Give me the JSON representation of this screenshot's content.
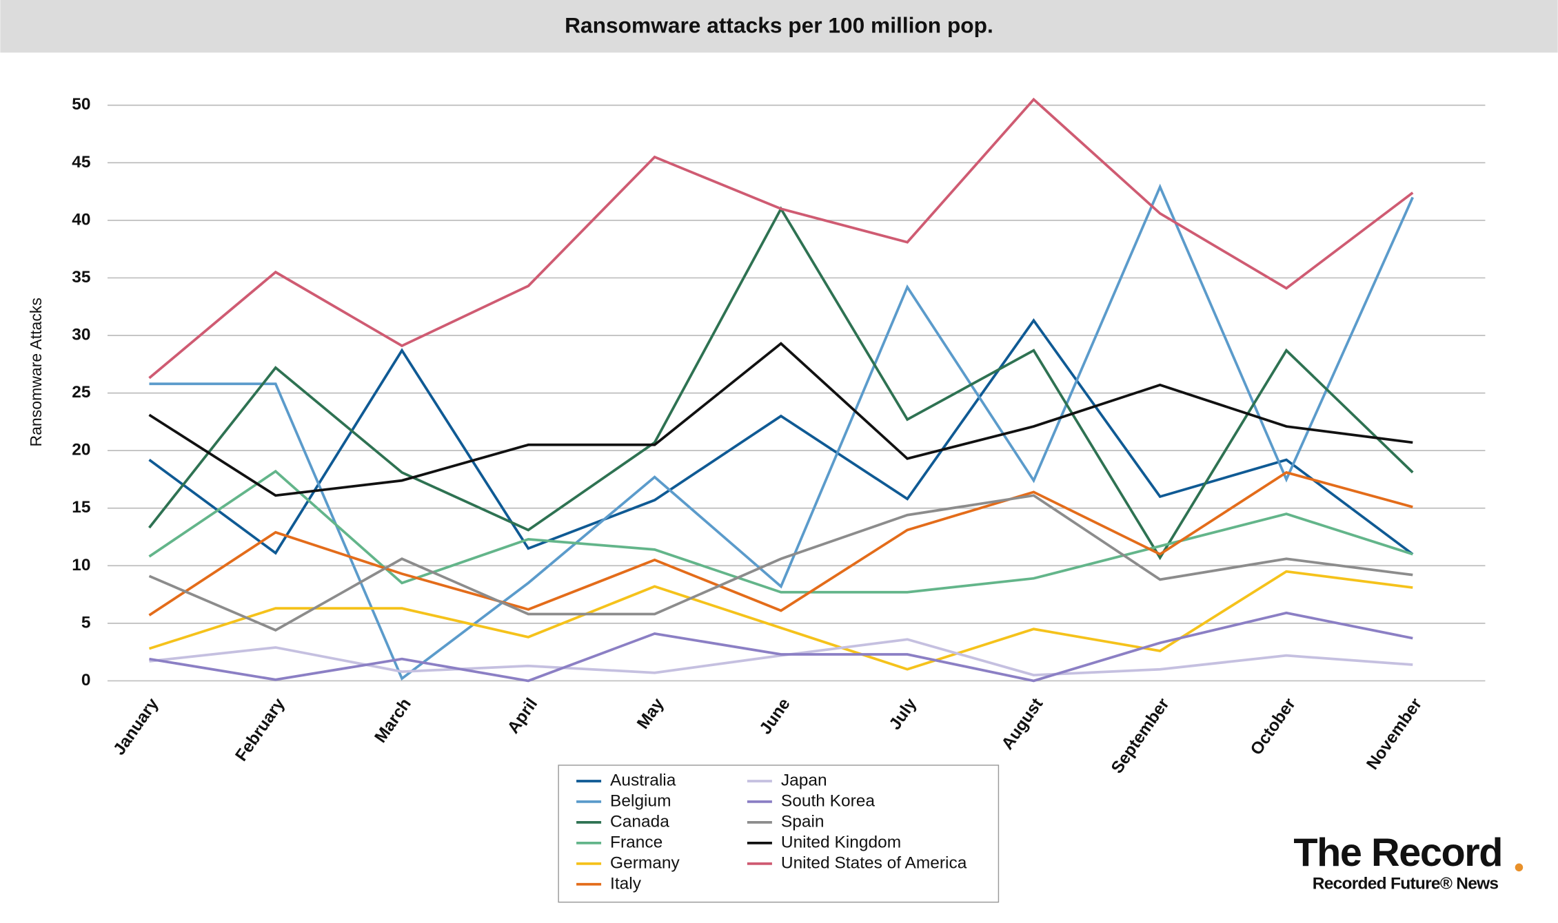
{
  "chart_data": {
    "type": "line",
    "title": "Ransomware attacks per 100 million pop.",
    "y_label": "Ransomware Attacks",
    "categories": [
      "January",
      "February",
      "March",
      "April",
      "May",
      "June",
      "July",
      "August",
      "September",
      "October",
      "November"
    ],
    "ylim": [
      0,
      50
    ],
    "yticks": [
      0,
      5,
      10,
      15,
      20,
      25,
      30,
      35,
      40,
      45,
      50
    ],
    "grid": true,
    "series": [
      {
        "name": "Australia",
        "color": "#0f5a94",
        "values": [
          19.2,
          11.1,
          28.7,
          11.5,
          15.7,
          23.0,
          15.8,
          31.3,
          16.0,
          19.2,
          11.0
        ]
      },
      {
        "name": "Belgium",
        "color": "#5b9bcb",
        "values": [
          25.8,
          25.8,
          0.2,
          8.5,
          17.7,
          8.2,
          34.2,
          17.4,
          42.9,
          17.5,
          42.0
        ]
      },
      {
        "name": "Canada",
        "color": "#2e7252",
        "values": [
          13.3,
          27.2,
          18.1,
          13.1,
          20.7,
          41.0,
          22.7,
          28.7,
          10.7,
          28.7,
          18.1
        ]
      },
      {
        "name": "France",
        "color": "#63b58a",
        "values": [
          10.8,
          18.2,
          8.5,
          12.3,
          11.4,
          7.7,
          7.7,
          8.9,
          11.7,
          14.5,
          11.0
        ]
      },
      {
        "name": "Germany",
        "color": "#f5c21b",
        "values": [
          2.8,
          6.3,
          6.3,
          3.8,
          8.2,
          4.6,
          1.0,
          4.5,
          2.6,
          9.5,
          8.1
        ]
      },
      {
        "name": "Italy",
        "color": "#e36c1a",
        "values": [
          5.7,
          12.9,
          9.3,
          6.2,
          10.5,
          6.1,
          13.1,
          16.4,
          11.0,
          18.1,
          15.1
        ]
      },
      {
        "name": "Japan",
        "color": "#c5c0e0",
        "values": [
          1.7,
          2.9,
          0.8,
          1.3,
          0.7,
          2.2,
          3.6,
          0.5,
          1.0,
          2.2,
          1.4
        ]
      },
      {
        "name": "South Korea",
        "color": "#8b7fc4",
        "values": [
          1.9,
          0.1,
          1.9,
          0.0,
          4.1,
          2.3,
          2.3,
          0.0,
          3.3,
          5.9,
          3.7
        ]
      },
      {
        "name": "Spain",
        "color": "#8c8c8c",
        "values": [
          9.1,
          4.4,
          10.6,
          5.8,
          5.8,
          10.6,
          14.4,
          16.1,
          8.8,
          10.6,
          9.2
        ]
      },
      {
        "name": "United Kingdom",
        "color": "#111111",
        "values": [
          23.1,
          16.1,
          17.4,
          20.5,
          20.5,
          29.3,
          19.3,
          22.1,
          25.7,
          22.1,
          20.7
        ]
      },
      {
        "name": "United States of America",
        "color": "#cf5b72",
        "values": [
          26.3,
          35.5,
          29.1,
          34.3,
          45.5,
          41.0,
          38.1,
          50.5,
          40.6,
          34.1,
          42.4
        ]
      }
    ]
  },
  "branding": {
    "name": "The Record",
    "tagline": "Recorded Future® News"
  }
}
